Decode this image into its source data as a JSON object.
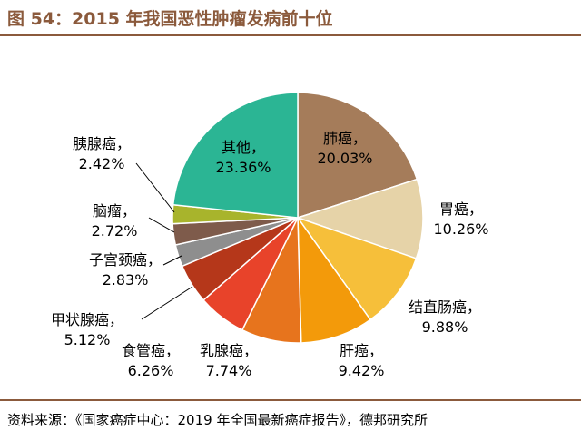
{
  "header": {
    "title": "图 54：2015 年我国恶性肿瘤发病前十位"
  },
  "footer": {
    "source": "资料来源：《国家癌症中心：2019 年全国最新癌症报告》，德邦研究所"
  },
  "chart_data": {
    "type": "pie",
    "title": "图 54：2015 年我国恶性肿瘤发病前十位",
    "unit": "%",
    "slices": [
      {
        "label": "肺癌，",
        "value": 20.03,
        "display": "20.03%",
        "color": "#A57C5A"
      },
      {
        "label": "胃癌，",
        "value": 10.26,
        "display": "10.26%",
        "color": "#E6D3A8"
      },
      {
        "label": "结直肠癌，",
        "value": 9.88,
        "display": "9.88%",
        "color": "#F6BF3A"
      },
      {
        "label": "肝癌，",
        "value": 9.42,
        "display": "9.42%",
        "color": "#F39A0A"
      },
      {
        "label": "乳腺癌，",
        "value": 7.74,
        "display": "7.74%",
        "color": "#E7741D"
      },
      {
        "label": "食管癌，",
        "value": 6.26,
        "display": "6.26%",
        "color": "#E8432A"
      },
      {
        "label": "甲状腺癌，",
        "value": 5.12,
        "display": "5.12%",
        "color": "#B5371A"
      },
      {
        "label": "子宫颈癌，",
        "value": 2.83,
        "display": "2.83%",
        "color": "#8E8E8E"
      },
      {
        "label": "脑瘤，",
        "value": 2.72,
        "display": "2.72%",
        "color": "#7E5B4B"
      },
      {
        "label": "胰腺癌，",
        "value": 2.42,
        "display": "2.42%",
        "color": "#A8B42C"
      },
      {
        "label": "其他，",
        "value": 23.36,
        "display": "23.36%",
        "color": "#2BB594"
      }
    ]
  }
}
